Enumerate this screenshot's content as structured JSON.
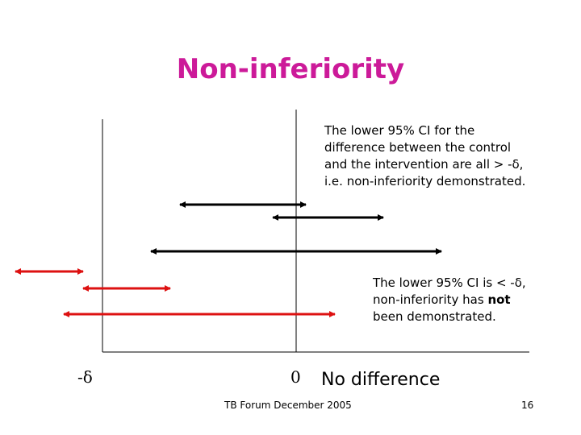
{
  "slide": {
    "title": "Non-inferiority",
    "footer": "TB Forum December 2005",
    "page_number": "16"
  },
  "annotations": {
    "ok_text": "The lower 95% CI for the\ndifference between the control\nand the intervention are all > -δ,\ni.e. non-inferiority demonstrated.",
    "fail_prefix": "The lower 95% CI is < -δ,\nnon-inferiority has ",
    "fail_emphasis": "not",
    "fail_suffix": "\nbeen demonstrated."
  },
  "axis": {
    "minus_delta_label": "-δ",
    "zero_label": "0",
    "no_difference_label": "No difference"
  },
  "colors": {
    "title": "#cc1a99",
    "pass_interval": "#000000",
    "fail_interval": "#dd1111"
  },
  "intervals": [
    {
      "status": "non-inferior",
      "lower": -0.6,
      "upper": 0.05,
      "color": "#000000"
    },
    {
      "status": "non-inferior",
      "lower": -0.12,
      "upper": 0.45,
      "color": "#000000"
    },
    {
      "status": "non-inferior",
      "lower": -0.75,
      "upper": 0.75,
      "color": "#000000"
    },
    {
      "status": "not-demonstrated",
      "lower": -1.45,
      "upper": -1.1,
      "color": "#dd1111"
    },
    {
      "status": "not-demonstrated",
      "lower": -1.1,
      "upper": -0.65,
      "color": "#dd1111"
    },
    {
      "status": "not-demonstrated",
      "lower": -1.2,
      "upper": 0.2,
      "color": "#dd1111"
    }
  ]
}
